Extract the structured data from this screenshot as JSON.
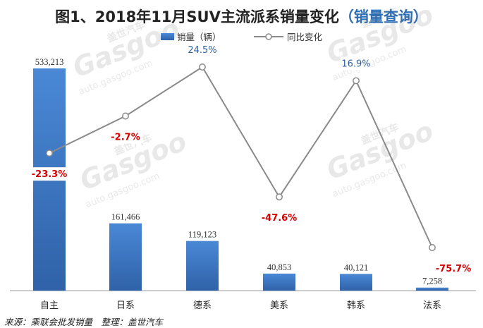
{
  "title": "图1、2018年11月SUV主流派系销量变化",
  "subtitle": "（销量查询）",
  "source": "来源：乘联会批发销量　整理：盖世汽车",
  "watermark": {
    "text_cn": "盖世汽车",
    "text_en": "Gasgoo",
    "url": "auto.gasgoo.com"
  },
  "colors": {
    "bar": "#3a78c8",
    "line": "#8a8a8a",
    "negative_label": "#d40000",
    "positive_label": "#2f5f9e"
  },
  "chart_data": {
    "type": "bar",
    "categories": [
      "自主",
      "日系",
      "德系",
      "美系",
      "韩系",
      "法系"
    ],
    "series": [
      {
        "name": "销量（辆）",
        "type": "bar",
        "values": [
          533213,
          161466,
          119123,
          40853,
          40121,
          7258
        ],
        "labels": [
          "533,213",
          "161,466",
          "119,123",
          "40,853",
          "40,121",
          "7,258"
        ]
      },
      {
        "name": "同比变化",
        "type": "line",
        "values": [
          -23.3,
          -2.7,
          24.5,
          -47.6,
          16.9,
          -75.7
        ],
        "labels": [
          "-23.3%",
          "-2.7%",
          "24.5%",
          "-47.6%",
          "16.9%",
          "-75.7%"
        ]
      }
    ],
    "ylim_bar": [
      0,
      533213
    ],
    "ylim_line": [
      -75.7,
      24.5
    ],
    "legend_position": "top-center",
    "grid": false
  }
}
